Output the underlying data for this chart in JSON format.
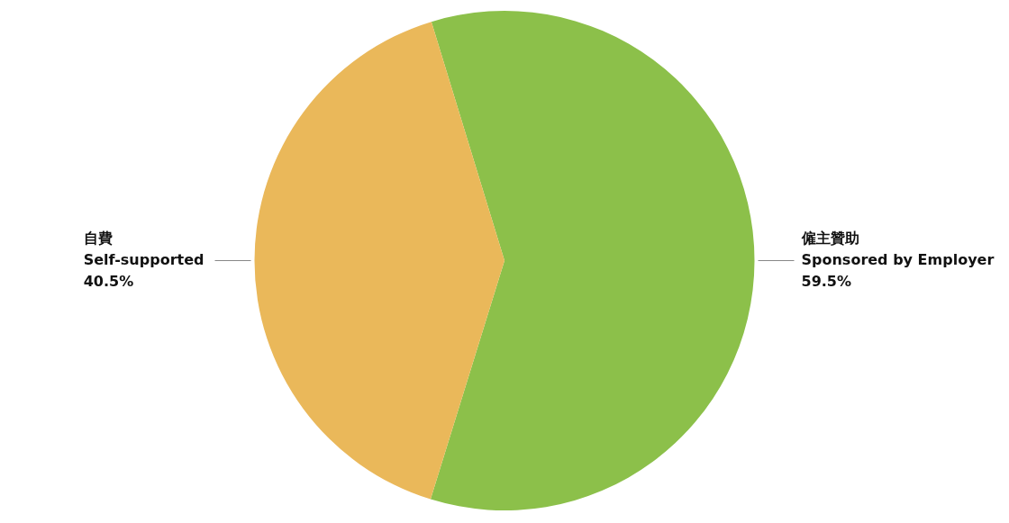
{
  "chart_data": {
    "type": "pie",
    "categories": [
      "僱主贊助\nSponsored by Employer",
      "自費\nSelf-supported"
    ],
    "values": [
      59.5,
      40.5
    ],
    "colors": [
      "#8cc04a",
      "#eab85a"
    ],
    "value_labels": [
      "59.5%",
      "40.5%"
    ]
  }
}
